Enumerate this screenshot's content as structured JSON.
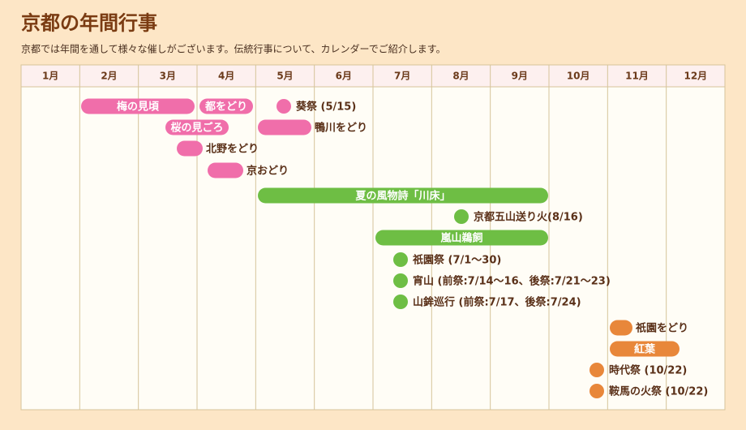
{
  "header": {
    "title": "京都の年間行事",
    "subtitle": "京都では年間を通して様々な催しがございます。伝統行事について、カレンダーでご紹介します。"
  },
  "months": [
    "1月",
    "2月",
    "3月",
    "4月",
    "5月",
    "6月",
    "7月",
    "8月",
    "9月",
    "10月",
    "11月",
    "12月"
  ],
  "events": [
    {
      "label": "梅の見頃"
    },
    {
      "label": "都をどり"
    },
    {
      "label": "葵祭 (5/15)"
    },
    {
      "label": "桜の見ごろ"
    },
    {
      "label": "鴨川をどり"
    },
    {
      "label": "北野をどり"
    },
    {
      "label": "京おどり"
    },
    {
      "label": "夏の風物詩「川床」"
    },
    {
      "label": "京都五山送り火(8/16)"
    },
    {
      "label": "嵐山鵜飼"
    },
    {
      "label": "祇園祭 (7/1～30)"
    },
    {
      "label": "宵山 (前祭:7/14～16、後祭:7/21～23)"
    },
    {
      "label": "山鉾巡行 (前祭:7/17、後祭:7/24)"
    },
    {
      "label": "祇園をどり"
    },
    {
      "label": "紅葉"
    },
    {
      "label": "時代祭 (10/22)"
    },
    {
      "label": "鞍馬の火祭 (10/22)"
    }
  ]
}
